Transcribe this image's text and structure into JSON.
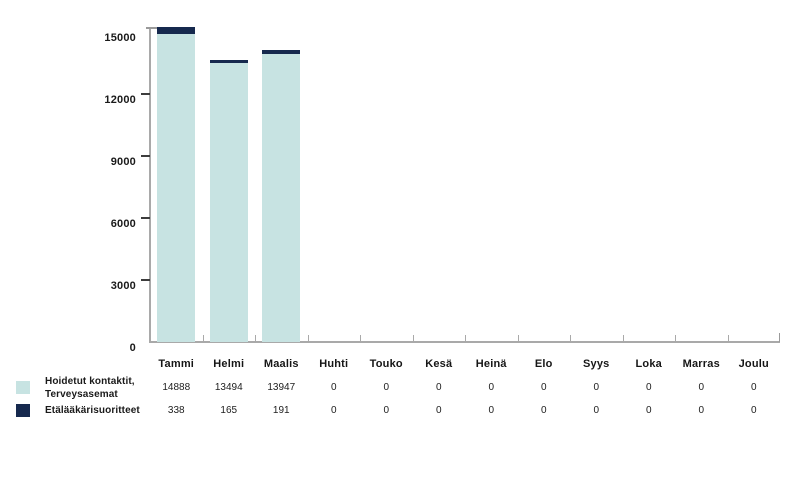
{
  "colors": {
    "series1": "#c7e3e2",
    "series2": "#16294e",
    "axis_line": "#a9a9a9",
    "y_tick": "#3c3c3c",
    "text": "#1a1a1a"
  },
  "chart_data": {
    "type": "bar",
    "stacked": true,
    "title": "",
    "xlabel": "",
    "ylabel": "",
    "ylim": [
      0,
      15000
    ],
    "yticks": [
      0,
      3000,
      6000,
      9000,
      12000,
      15000
    ],
    "grid": false,
    "legend_position": "bottom-table",
    "categories": [
      "Tammi",
      "Helmi",
      "Maalis",
      "Huhti",
      "Touko",
      "Kesä",
      "Heinä",
      "Elo",
      "Syys",
      "Loka",
      "Marras",
      "Joulu"
    ],
    "series": [
      {
        "name": "Hoidetut kontaktit, Terveysasemat",
        "color": "#c7e3e2",
        "values": [
          14888,
          13494,
          13947,
          0,
          0,
          0,
          0,
          0,
          0,
          0,
          0,
          0
        ]
      },
      {
        "name": "Etälääkärisuoritteet",
        "color": "#16294e",
        "values": [
          338,
          165,
          191,
          0,
          0,
          0,
          0,
          0,
          0,
          0,
          0,
          0
        ]
      }
    ]
  },
  "legend": {
    "row1": {
      "label_line1": "Hoidetut kontaktit,",
      "label_line2": "Terveysasemat"
    },
    "row2": {
      "label": "Etälääkärisuoritteet"
    }
  }
}
